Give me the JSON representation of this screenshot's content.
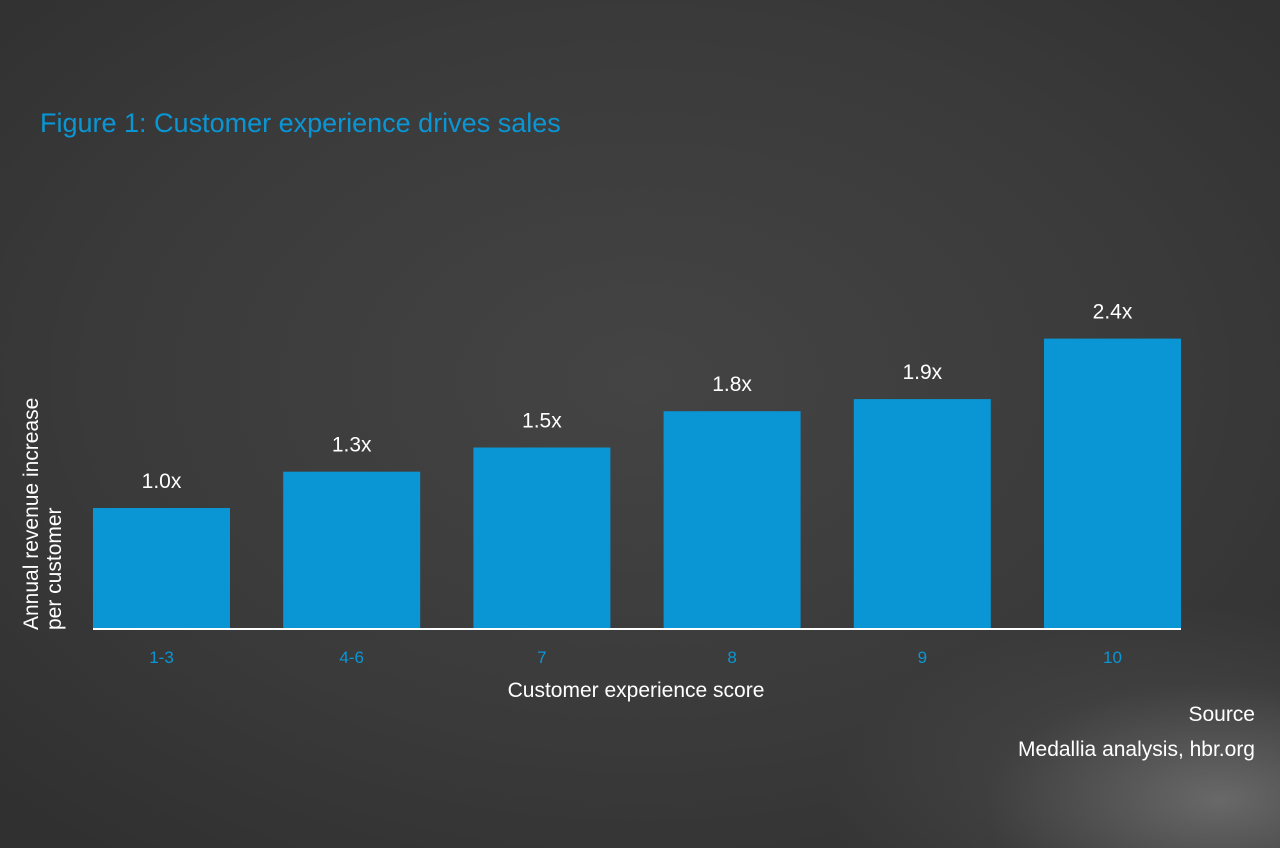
{
  "title": "Figure 1: Customer experience drives sales",
  "ylabel_line1": "Annual revenue increase",
  "ylabel_line2": "per customer",
  "xlabel": "Customer experience score",
  "source_label": "Source",
  "source_text": "Medallia analysis, hbr.org",
  "colors": {
    "bar": "#0a96d4",
    "title": "#0a96d4",
    "tick_label": "#0a96d4",
    "text": "#ffffff",
    "axis": "#ffffff"
  },
  "chart_data": {
    "type": "bar",
    "title": "Figure 1: Customer experience drives sales",
    "xlabel": "Customer experience score",
    "ylabel": "Annual revenue increase per customer",
    "categories": [
      "1-3",
      "4-6",
      "7",
      "8",
      "9",
      "10"
    ],
    "values": [
      1.0,
      1.3,
      1.5,
      1.8,
      1.9,
      2.4
    ],
    "data_labels": [
      "1.0x",
      "1.3x",
      "1.5x",
      "1.8x",
      "1.9x",
      "2.4x"
    ],
    "ylim": [
      0,
      2.4
    ],
    "grid": false,
    "legend": "none"
  }
}
